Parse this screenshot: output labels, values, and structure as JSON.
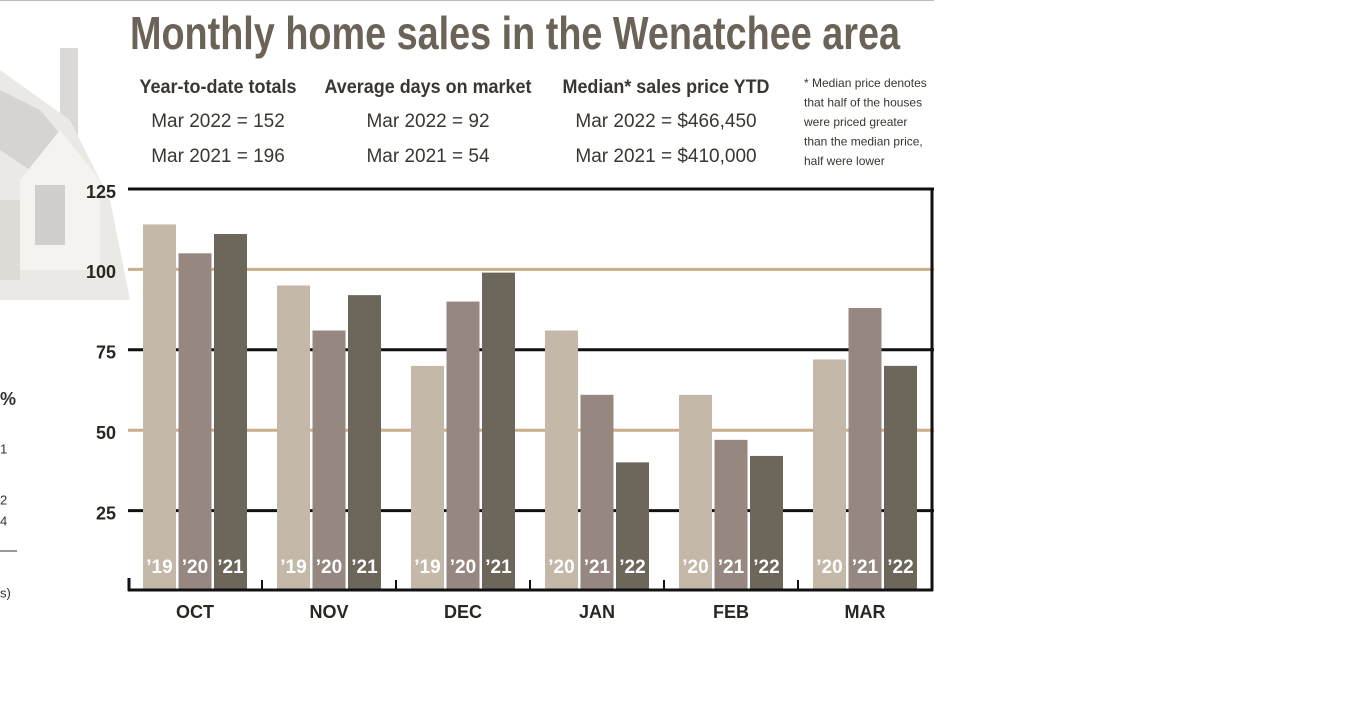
{
  "chart_data": {
    "type": "bar",
    "title": "Monthly home sales in the Wenatchee area",
    "stats": [
      {
        "heading": "Year-to-date totals",
        "lines": [
          "Mar 2022 = 152",
          "Mar 2021 = 196"
        ]
      },
      {
        "heading": "Average days on market",
        "lines": [
          "Mar 2022 = 92",
          "Mar 2021 = 54"
        ]
      },
      {
        "heading": "Median* sales price YTD",
        "lines": [
          "Mar 2022 = $466,450",
          "Mar 2021 = $410,000"
        ]
      }
    ],
    "note": [
      "* Median price denotes",
      "that half of the houses",
      "were priced greater",
      "than the median price,",
      "half were lower"
    ],
    "side_fragments": [
      "%",
      "1",
      "2",
      "4",
      "s)"
    ],
    "categories": [
      "OCT",
      "NOV",
      "DEC",
      "JAN",
      "FEB",
      "MAR"
    ],
    "series": [
      {
        "color": "#c4b9a8",
        "labels": [
          "’19",
          "’19",
          "’19",
          "’20",
          "’20",
          "’20"
        ],
        "values": [
          114,
          95,
          70,
          81,
          61,
          72
        ]
      },
      {
        "color": "#968880",
        "labels": [
          "’20",
          "’20",
          "’20",
          "’21",
          "’21",
          "’21"
        ],
        "values": [
          105,
          81,
          90,
          61,
          47,
          88
        ]
      },
      {
        "color": "#6c665b",
        "labels": [
          "’21",
          "’21",
          "’21",
          "’22",
          "’22",
          "’22"
        ],
        "values": [
          111,
          92,
          99,
          40,
          42,
          70
        ]
      }
    ],
    "ylim": [
      0,
      125
    ],
    "yticks": [
      25,
      50,
      75,
      100,
      125
    ],
    "grid": true,
    "grid_colors": [
      "#111111",
      "#c9ae8c",
      "#111111",
      "#c9ae8c",
      "#111111"
    ]
  }
}
